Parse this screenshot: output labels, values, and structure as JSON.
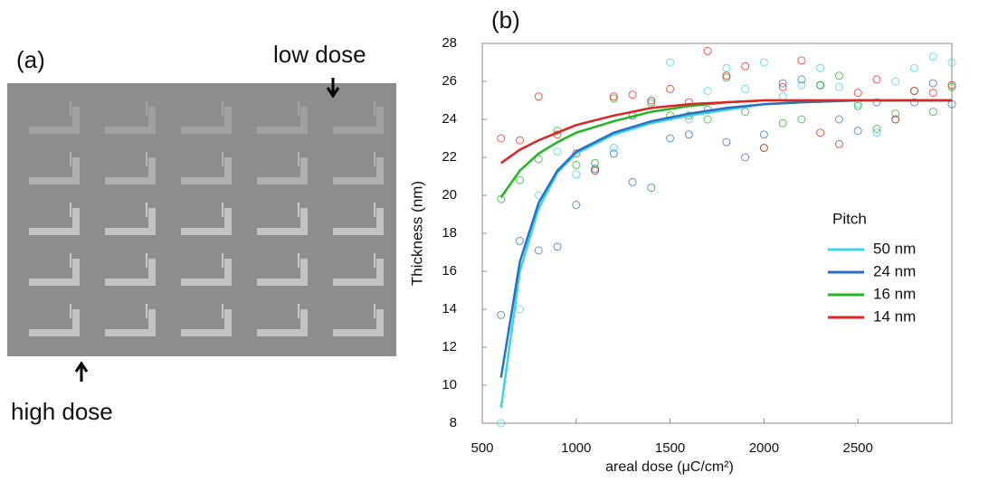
{
  "panel_a": {
    "label": "(a)",
    "low_dose": "low dose",
    "high_dose": "high dose"
  },
  "chart_data": {
    "type": "line",
    "panel_label": "(b)",
    "x_label": "areal dose (μC/cm²)",
    "y_label": "Thickness (nm)",
    "xlim": [
      500,
      3000
    ],
    "ylim": [
      8,
      28
    ],
    "xticks": [
      500,
      1000,
      1500,
      2000,
      2500
    ],
    "yticks": [
      8,
      10,
      12,
      14,
      16,
      18,
      20,
      22,
      24,
      26,
      28
    ],
    "legend_title": "Pitch",
    "x": [
      600,
      700,
      800,
      900,
      1000,
      1200,
      1400,
      1600,
      1800,
      2000,
      2200,
      2500,
      3000
    ],
    "points_x": [
      600,
      700,
      800,
      900,
      1000,
      1100,
      1200,
      1300,
      1400,
      1500,
      1600,
      1700,
      1800,
      1900,
      2000,
      2100,
      2200,
      2300,
      2400,
      2500,
      2600,
      2700,
      2800,
      2900,
      3000
    ],
    "series": [
      {
        "name": "50 nm",
        "color": "#3cd3e3",
        "values": [
          8.8,
          16.0,
          19.3,
          21.2,
          22.2,
          23.2,
          23.8,
          24.2,
          24.5,
          24.8,
          24.9,
          25,
          25
        ],
        "points": [
          8.0,
          14.0,
          20.0,
          22.3,
          21.1,
          21.3,
          22.5,
          24.2,
          24.8,
          27.0,
          24.0,
          25.5,
          26.7,
          25.6,
          27.0,
          25.2,
          25.8,
          26.7,
          25.7,
          24.8,
          23.3,
          26.0,
          26.7,
          27.3,
          27.0
        ]
      },
      {
        "name": "24 nm",
        "color": "#2a6fc0",
        "values": [
          10.4,
          16.5,
          19.6,
          21.3,
          22.3,
          23.3,
          23.9,
          24.3,
          24.6,
          24.8,
          24.9,
          25,
          25
        ],
        "points": [
          13.7,
          17.6,
          17.1,
          17.3,
          19.5,
          21.4,
          22.2,
          20.7,
          20.4,
          23.0,
          23.2,
          24.5,
          22.8,
          22.0,
          23.2,
          25.9,
          26.1,
          25.8,
          24.0,
          23.4,
          24.9,
          24.0,
          24.9,
          25.9,
          24.8
        ]
      },
      {
        "name": "16 nm",
        "color": "#22b422",
        "values": [
          19.9,
          21.3,
          22.2,
          22.8,
          23.3,
          23.9,
          24.4,
          24.7,
          24.9,
          25,
          25,
          25,
          25
        ],
        "points": [
          19.8,
          20.8,
          21.9,
          23.4,
          21.6,
          21.7,
          25.1,
          24.2,
          24.9,
          24.2,
          24.2,
          24.0,
          26.2,
          24.4,
          22.5,
          23.8,
          24.0,
          25.8,
          26.3,
          24.7,
          23.5,
          24.3,
          25.5,
          24.4,
          25.7
        ]
      },
      {
        "name": "14 nm",
        "color": "#e02424",
        "values": [
          21.7,
          22.4,
          22.9,
          23.3,
          23.7,
          24.2,
          24.6,
          24.8,
          24.9,
          25,
          25,
          25,
          25
        ],
        "points": [
          23.0,
          22.9,
          25.2,
          23.2,
          22.2,
          21.3,
          25.2,
          25.3,
          25.0,
          25.6,
          24.9,
          27.6,
          26.3,
          26.8,
          22.5,
          25.7,
          27.1,
          23.3,
          22.7,
          25.4,
          26.1,
          24.0,
          25.5,
          25.4,
          25.8
        ]
      }
    ]
  }
}
